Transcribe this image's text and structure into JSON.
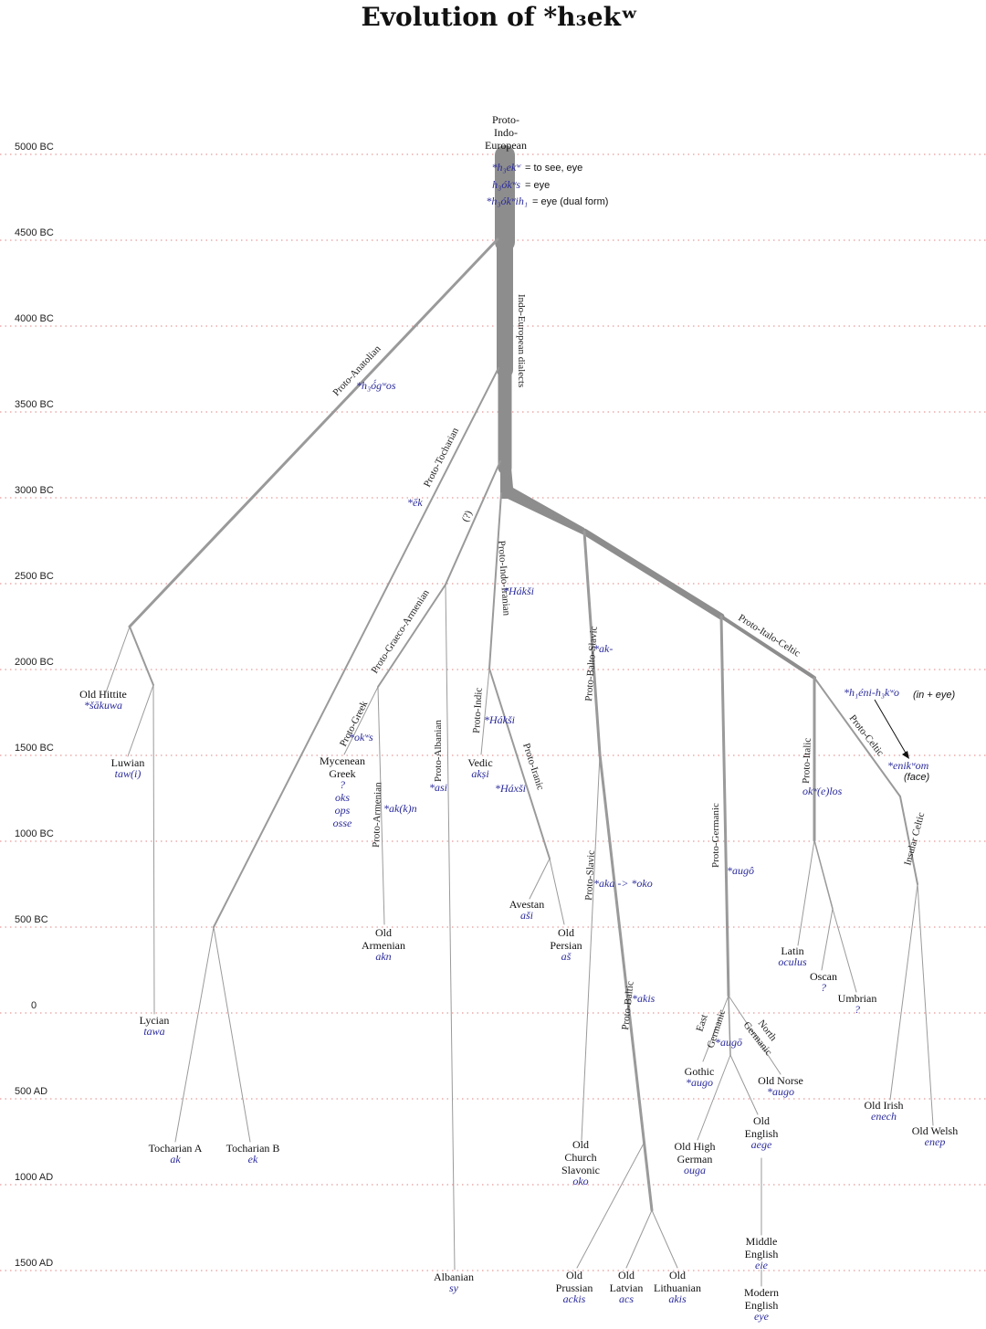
{
  "title": "Evolution of  *h₃ekʷ",
  "eras": [
    "5000 BC",
    "4500 BC",
    "4000 BC",
    "3500 BC",
    "3000 BC",
    "2500 BC",
    "2000 BC",
    "1500 BC",
    "1000 BC",
    "500 BC",
    "0",
    "500 AD",
    "1000 AD",
    "1500 AD"
  ],
  "root": {
    "name": [
      "Proto-",
      "Indo-",
      "European"
    ],
    "forms": [
      {
        "form": "*h₃ekʷ",
        "gloss": "= to see, eye"
      },
      {
        "form": "h₃ókʷs",
        "gloss": "= eye"
      },
      {
        "form": "*h₃ókʷih₁",
        "gloss": "= eye (dual form)"
      }
    ]
  },
  "branches": {
    "ie_dialects": "Indo-European dialects",
    "anatolian": "Proto-Anatolian",
    "tocharian": "Proto-Tocharian",
    "question": "(?)",
    "graeco_armenian": "Proto-Graeco-Armenian",
    "indo_iranian": "Proto-Indo-Iranian",
    "balto_slavic": "Proto-Balto-Slavic",
    "italo_celtic": "Proto-Italo-Celtic",
    "greek": "Proto-Greek",
    "armenian": "Proto-Armenian",
    "albanian": "Proto-Albanian",
    "indic": "Proto-Indic",
    "iranic": "Proto-Iranic",
    "slavic": "Proto-Slavic",
    "baltic": "Proto-Baltic",
    "germanic": "Proto-Germanic",
    "italic": "Proto-Italic",
    "celtic": "Proto-Celtic",
    "insular_celtic": "Insular Celtic",
    "east_germanic": [
      "East",
      "Germanic"
    ],
    "north_germanic": [
      "North",
      "Germanic"
    ]
  },
  "forms": {
    "anatolian": "*h₃ó́gʷos",
    "tocharian": "*ēk",
    "indo_iranian": "*Hákši",
    "balto_slavic": "*ak-",
    "greek": "*okʷs",
    "armenian": "*ak(k)n",
    "albanian": "*asi",
    "indic": "*Hákši",
    "iranic": "*Háxši",
    "slavic": "*aka -> *oko",
    "baltic": "*akis",
    "germanic": "*augô",
    "east_germanic": "*augō",
    "italic": "okʷ(e)los",
    "celtic_compound": "*h₁éni-h₃kʷo",
    "celtic_compound_gloss": "(in + eye)",
    "celtic": "*enikʷom",
    "celtic_gloss": "(face)"
  },
  "languages": [
    {
      "id": "old-hittite",
      "name": [
        "Old Hittite"
      ],
      "form": "*šākuwa"
    },
    {
      "id": "luwian",
      "name": [
        "Luwian"
      ],
      "form": "taw(i)"
    },
    {
      "id": "lycian",
      "name": [
        "Lycian"
      ],
      "form": "tawa"
    },
    {
      "id": "tocharian-a",
      "name": [
        "Tocharian A"
      ],
      "form": "ak"
    },
    {
      "id": "tocharian-b",
      "name": [
        "Tocharian B"
      ],
      "form": "ek"
    },
    {
      "id": "mycenean-greek",
      "name": [
        "Mycenean",
        "Greek"
      ],
      "form": "?",
      "extra": [
        "oks",
        "ops",
        "osse"
      ]
    },
    {
      "id": "old-armenian",
      "name": [
        "Old",
        "Armenian"
      ],
      "form": "akn"
    },
    {
      "id": "albanian",
      "name": [
        "Albanian"
      ],
      "form": "sy"
    },
    {
      "id": "vedic",
      "name": [
        "Vedic"
      ],
      "form": "akṣi"
    },
    {
      "id": "avestan",
      "name": [
        "Avestan"
      ],
      "form": "aši"
    },
    {
      "id": "old-persian",
      "name": [
        "Old",
        "Persian"
      ],
      "form": "aš"
    },
    {
      "id": "old-church-slavonic",
      "name": [
        "Old",
        "Church",
        "Slavonic"
      ],
      "form": "oko"
    },
    {
      "id": "old-prussian",
      "name": [
        "Old",
        "Prussian"
      ],
      "form": "ackis"
    },
    {
      "id": "old-latvian",
      "name": [
        "Old",
        "Latvian"
      ],
      "form": "acs"
    },
    {
      "id": "old-lithuanian",
      "name": [
        "Old",
        "Lithuanian"
      ],
      "form": "akis"
    },
    {
      "id": "gothic",
      "name": [
        "Gothic"
      ],
      "form": "*augo"
    },
    {
      "id": "old-high-german",
      "name": [
        "Old High",
        "German"
      ],
      "form": "ouga"
    },
    {
      "id": "old-norse",
      "name": [
        "Old Norse"
      ],
      "form": "*augo"
    },
    {
      "id": "old-english",
      "name": [
        "Old",
        "English"
      ],
      "form": "aege"
    },
    {
      "id": "middle-english",
      "name": [
        "Middle",
        "English"
      ],
      "form": "eie"
    },
    {
      "id": "modern-english",
      "name": [
        "Modern",
        "English"
      ],
      "form": "eye"
    },
    {
      "id": "latin",
      "name": [
        "Latin"
      ],
      "form": "oculus"
    },
    {
      "id": "oscan",
      "name": [
        "Oscan"
      ],
      "form": "?"
    },
    {
      "id": "umbrian",
      "name": [
        "Umbrian"
      ],
      "form": "?"
    },
    {
      "id": "old-irish",
      "name": [
        "Old Irish"
      ],
      "form": "enech"
    },
    {
      "id": "old-welsh",
      "name": [
        "Old Welsh"
      ],
      "form": "enep"
    }
  ]
}
